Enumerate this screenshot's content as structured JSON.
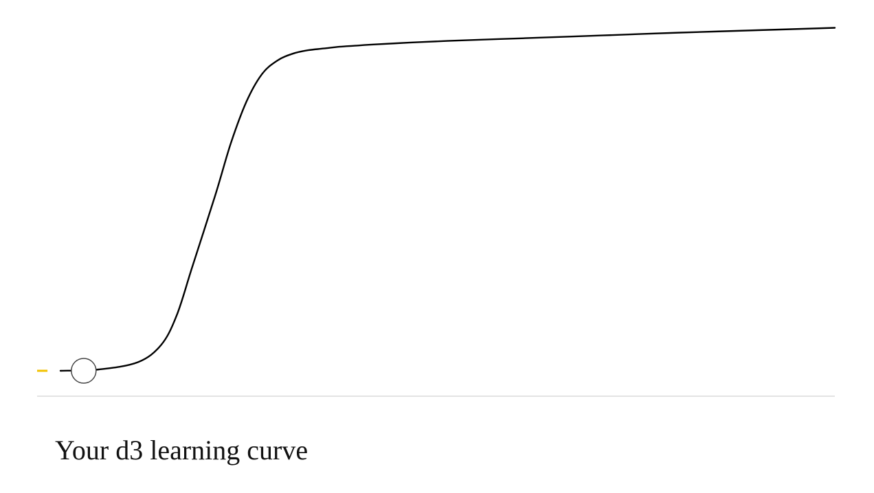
{
  "caption": "Your d3 learning curve",
  "colors": {
    "curve": "#000000",
    "marker_fill": "#ffffff",
    "marker_stroke": "#444444",
    "progress": "#f2c200",
    "baseline": "#e3e3e3"
  },
  "chart_data": {
    "type": "line",
    "title": "",
    "xlabel": "",
    "ylabel": "",
    "grid": false,
    "legend": "none",
    "xlim": [
      0,
      100
    ],
    "ylim": [
      0,
      100
    ],
    "x": [
      0,
      5,
      10,
      13,
      15,
      17,
      20,
      22,
      24,
      26,
      28,
      30,
      32,
      34,
      36,
      38,
      40,
      45,
      50,
      60,
      70,
      80,
      90,
      100
    ],
    "y": [
      0,
      0.4,
      2.5,
      7.5,
      16,
      30,
      51,
      66,
      78,
      86,
      90,
      92,
      93,
      93.5,
      94,
      94.3,
      94.6,
      95.2,
      95.7,
      96.5,
      97.3,
      98.1,
      98.8,
      99.5
    ],
    "marker": {
      "x": 3,
      "y": 0
    },
    "progress": 0.013
  }
}
